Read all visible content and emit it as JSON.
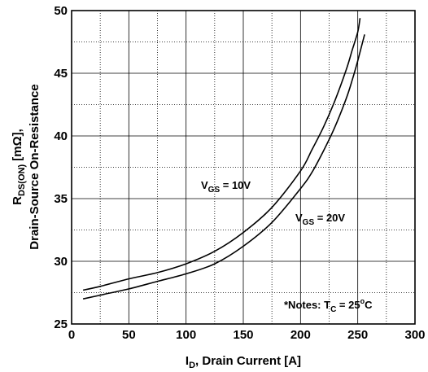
{
  "chart_data": {
    "type": "line",
    "x_label": {
      "main": "I",
      "sub": "D",
      "rest": ", Drain Current [A]"
    },
    "y_label_line1": {
      "main": "R",
      "sub": "DS(ON)",
      "rest": " [mΩ],"
    },
    "y_label_line2": "Drain-Source On-Resistance",
    "xlim": [
      0,
      300
    ],
    "ylim": [
      25,
      50
    ],
    "x_ticks": [
      0,
      50,
      100,
      150,
      200,
      250,
      300
    ],
    "y_ticks": [
      25,
      30,
      35,
      40,
      45,
      50
    ],
    "grid": true,
    "series": [
      {
        "name": "VGS = 10V",
        "label": {
          "main": "V",
          "sub": "GS",
          "rest": " = 10V"
        },
        "x": [
          10,
          25,
          50,
          75,
          100,
          125,
          150,
          175,
          200,
          210,
          220,
          230,
          240,
          245,
          250,
          252
        ],
        "y": [
          27.7,
          28.0,
          28.6,
          29.1,
          29.8,
          30.8,
          32.3,
          34.3,
          37.2,
          38.9,
          40.7,
          42.8,
          45.3,
          46.8,
          48.3,
          49.4
        ]
      },
      {
        "name": "VGS = 20V",
        "label": {
          "main": "V",
          "sub": "GS",
          "rest": " = 20V"
        },
        "x": [
          10,
          25,
          50,
          75,
          100,
          125,
          150,
          175,
          200,
          210,
          220,
          230,
          240,
          245,
          250,
          256
        ],
        "y": [
          27.0,
          27.3,
          27.8,
          28.4,
          29.0,
          29.8,
          31.2,
          33.1,
          35.8,
          37.1,
          38.8,
          40.7,
          43.0,
          44.4,
          46.0,
          48.1
        ]
      }
    ],
    "note": {
      "pre": "*Notes: T",
      "sub": "C",
      "mid": " = 25",
      "sup": "o",
      "post": "C"
    }
  }
}
